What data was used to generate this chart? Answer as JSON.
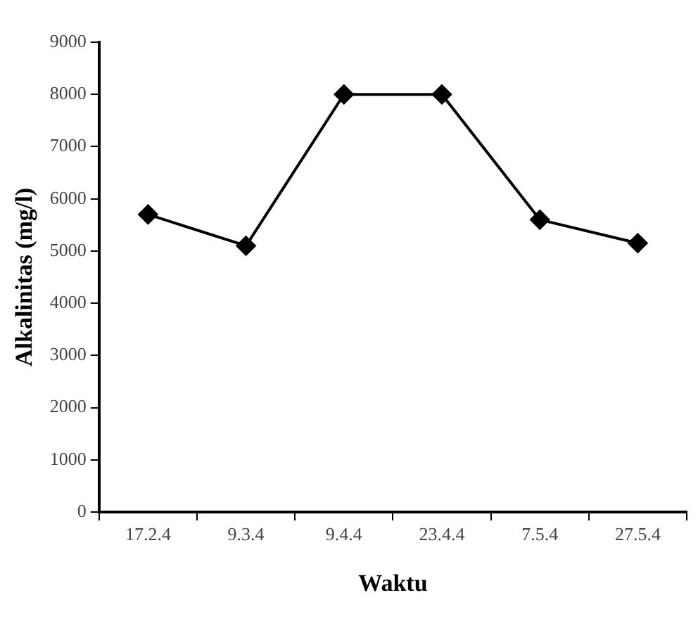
{
  "chart_data": {
    "type": "line",
    "xlabel": "Waktu",
    "ylabel": "Alkalinitas (mg/l)",
    "categories": [
      "17.2.4",
      "9.3.4",
      "9.4.4",
      "23.4.4",
      "7.5.4",
      "27.5.4"
    ],
    "series": [
      {
        "color": "#000000",
        "values": [
          5700,
          5100,
          8000,
          8000,
          5600,
          5150
        ]
      }
    ],
    "ylim": [
      0,
      9000
    ],
    "yticks": [
      0,
      1000,
      2000,
      3000,
      4000,
      5000,
      6000,
      7000,
      8000,
      9000
    ],
    "grid": false,
    "legend": false,
    "marker": "diamond",
    "line_style": "solid"
  }
}
